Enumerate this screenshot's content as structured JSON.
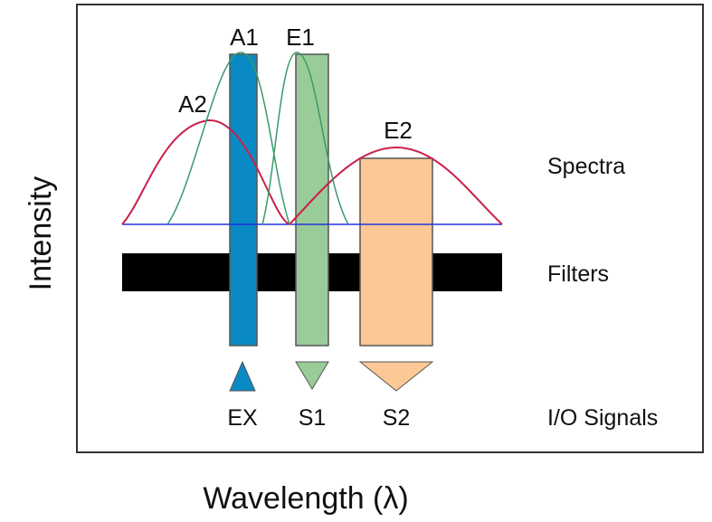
{
  "axes": {
    "y_label": "Intensity",
    "x_label": "Wavelength (λ)"
  },
  "peaks": {
    "a1": "A1",
    "e1": "E1",
    "a2": "A2",
    "e2": "E2"
  },
  "rows": {
    "spectra": "Spectra",
    "filters": "Filters",
    "signals": "I/O Signals"
  },
  "signals": {
    "ex": "EX",
    "s1": "S1",
    "s2": "S2"
  },
  "colors": {
    "ex_filter": "#0a8ac4",
    "s1_filter": "#99cc99",
    "s2_filter": "#fcc896",
    "curve_red": "#cc1f4a",
    "curve_green": "#3a9a6a",
    "baseline": "#2233dd",
    "filter_bar": "#000000",
    "frame": "#333333"
  }
}
